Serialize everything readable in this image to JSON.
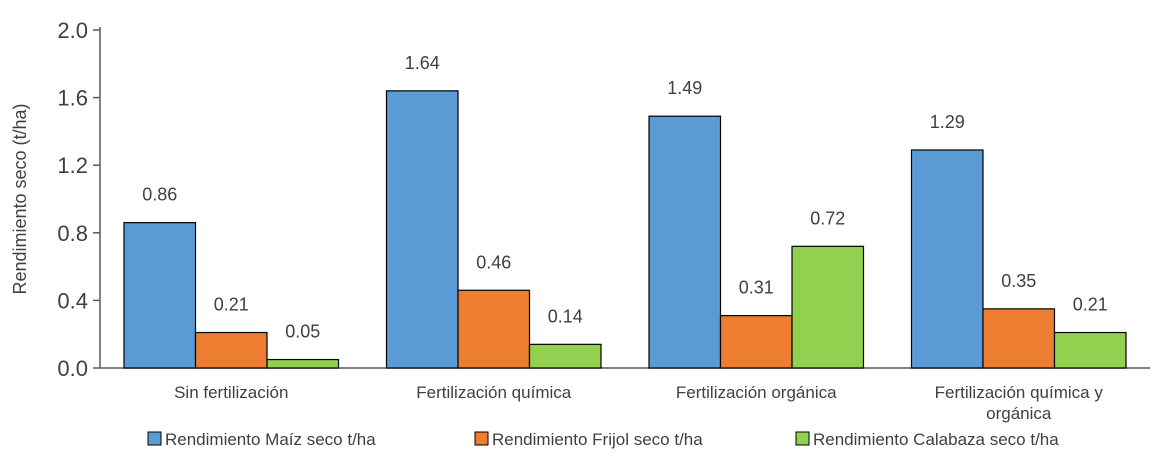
{
  "chart_data": {
    "type": "bar",
    "title": "",
    "xlabel": "",
    "ylabel": "Rendimiento seco (t/ha)",
    "ylim": [
      0,
      2.0
    ],
    "yticks": [
      "0.0",
      "0.4",
      "0.8",
      "1.2",
      "1.6",
      "2.0"
    ],
    "ytick_values": [
      0,
      0.4,
      0.8,
      1.2,
      1.6,
      2.0
    ],
    "grid": false,
    "legend_position": "bottom",
    "categories": [
      [
        "Sin fertilización"
      ],
      [
        "Fertilización química"
      ],
      [
        "Fertilización orgánica"
      ],
      [
        "Fertilización química y",
        "orgánica"
      ]
    ],
    "series": [
      {
        "name": "Rendimiento Maíz seco t/ha",
        "color": "#5b9bd5",
        "values": [
          0.86,
          1.64,
          1.49,
          1.29
        ],
        "labels": [
          "0.86",
          "1.64",
          "1.49",
          "1.29"
        ]
      },
      {
        "name": "Rendimiento Frijol seco t/ha",
        "color": "#ed7d31",
        "values": [
          0.21,
          0.46,
          0.31,
          0.35
        ],
        "labels": [
          "0.21",
          "0.46",
          "0.31",
          "0.35"
        ]
      },
      {
        "name": "Rendimiento Calabaza seco t/ha",
        "color": "#92d050",
        "values": [
          0.05,
          0.14,
          0.72,
          0.21
        ],
        "labels": [
          "0.05",
          "0.14",
          "0.72",
          "0.21"
        ]
      }
    ]
  }
}
